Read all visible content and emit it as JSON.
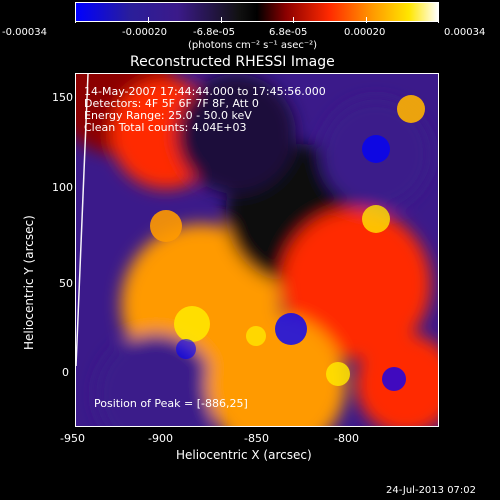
{
  "colorbar": {
    "ticks": [
      "-0.00034",
      "-0.00020",
      "-6.8e-05",
      "6.8e-05",
      "0.00020",
      "0.00034"
    ],
    "units": "(photons cm⁻² s⁻¹ asec⁻²)",
    "colors": [
      "#0000ff",
      "#3b1a8a",
      "#000000",
      "#8b0000",
      "#ff3000",
      "#ff9a00",
      "#ffe600",
      "#ffffff"
    ]
  },
  "plot": {
    "title": "Reconstructed RHESSI Image",
    "annotations": {
      "time_range": "14-May-2007 17:44:44.000 to 17:45:56.000",
      "detectors": "Detectors: 4F 5F 6F 7F 8F, Att 0",
      "energy_range": "Energy Range: 25.0 - 50.0 keV",
      "clean_counts": "Clean     Total counts: 4.04E+03",
      "peak": "Position of Peak = [-886,25]"
    },
    "x_axis": {
      "label": "Heliocentric X (arcsec)",
      "ticks": [
        "-950",
        "-900",
        "-850",
        "-800"
      ]
    },
    "y_axis": {
      "label": "Heliocentric Y (arcsec)",
      "ticks": [
        "150",
        "100",
        "50",
        "0"
      ]
    }
  },
  "footer": {
    "timestamp": "24-Jul-2013 07:02"
  }
}
